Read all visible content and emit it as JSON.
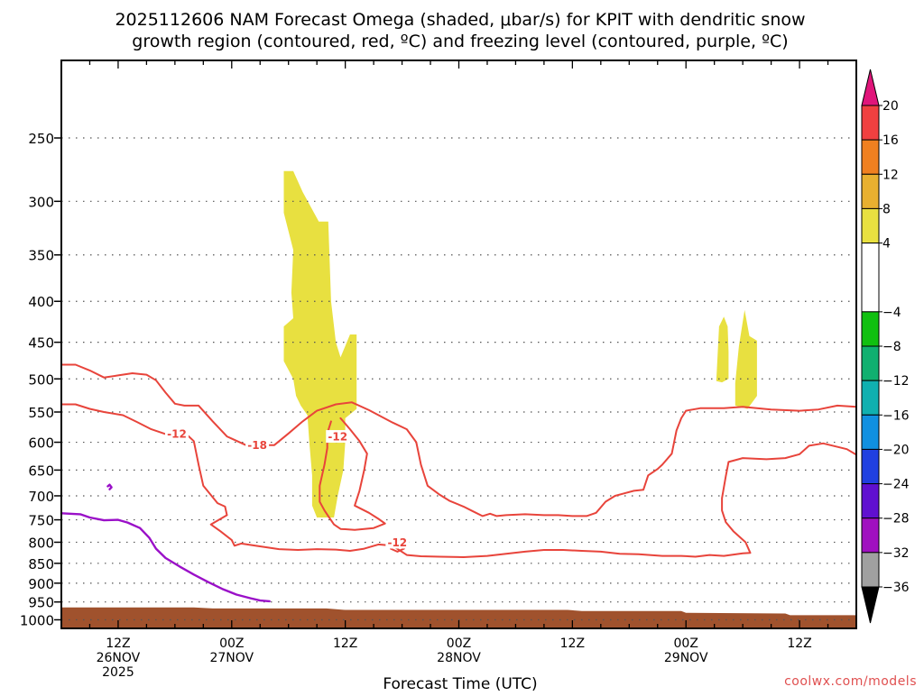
{
  "chart_data": {
    "type": "contour",
    "title_lines": [
      "2025112606 NAM Forecast Omega (shaded, μbar/s) for KPIT with dendritic snow",
      "growth region (contoured, red, ºC) and freezing level (contoured, purple, ºC)"
    ],
    "xlabel": "Forecast Time (UTC)",
    "credit": "coolwx.com/models",
    "x_unit": "hours since 26NOV 00Z",
    "xlim": [
      6,
      90
    ],
    "y_unit": "hPa",
    "ylim": [
      1025,
      200
    ],
    "y_ticks": [
      250,
      300,
      350,
      400,
      450,
      500,
      550,
      600,
      650,
      700,
      750,
      800,
      850,
      900,
      950,
      1000
    ],
    "x_ticks": [
      {
        "hour": 12,
        "lines": [
          "12Z",
          "26NOV",
          "2025"
        ]
      },
      {
        "hour": 24,
        "lines": [
          "00Z",
          "27NOV"
        ]
      },
      {
        "hour": 36,
        "lines": [
          "12Z"
        ]
      },
      {
        "hour": 48,
        "lines": [
          "00Z",
          "28NOV"
        ]
      },
      {
        "hour": 60,
        "lines": [
          "12Z"
        ]
      },
      {
        "hour": 72,
        "lines": [
          "00Z",
          "29NOV"
        ]
      },
      {
        "hour": 84,
        "lines": [
          "12Z"
        ]
      }
    ],
    "colorbar": {
      "label_values": [
        20,
        16,
        12,
        8,
        4,
        -4,
        -8,
        -12,
        -16,
        -20,
        -24,
        -28,
        -32,
        -36
      ],
      "bands": [
        {
          "from": 16,
          "to": 20,
          "color": "#f04040"
        },
        {
          "from": 12,
          "to": 16,
          "color": "#f08020"
        },
        {
          "from": 8,
          "to": 12,
          "color": "#e8b030"
        },
        {
          "from": 4,
          "to": 8,
          "color": "#e8e040"
        },
        {
          "from": -4,
          "to": 4,
          "color": "#ffffff"
        },
        {
          "from": -8,
          "to": -4,
          "color": "#10c010"
        },
        {
          "from": -12,
          "to": -8,
          "color": "#10b070"
        },
        {
          "from": -16,
          "to": -12,
          "color": "#10b0b0"
        },
        {
          "from": -20,
          "to": -16,
          "color": "#1090e0"
        },
        {
          "from": -24,
          "to": -20,
          "color": "#2040e0"
        },
        {
          "from": -28,
          "to": -24,
          "color": "#6010d0"
        },
        {
          "from": -32,
          "to": -28,
          "color": "#a010c0"
        },
        {
          "from": -36,
          "to": -32,
          "color": "#a0a0a0"
        }
      ],
      "top_arrow_color": "#e0157a",
      "bottom_arrow_color": "#000000"
    },
    "omega_shaded_regions": [
      {
        "color": "#e8e040",
        "value_range": "4 to 8",
        "points": [
          [
            29.5,
            275
          ],
          [
            30.5,
            275
          ],
          [
            31.5,
            292
          ],
          [
            33.2,
            318
          ],
          [
            34.2,
            318
          ],
          [
            34.5,
            400
          ],
          [
            35,
            450
          ],
          [
            35.5,
            470
          ],
          [
            36.5,
            440
          ],
          [
            37.2,
            440
          ],
          [
            37.2,
            545
          ],
          [
            36,
            560
          ],
          [
            36,
            600
          ],
          [
            35.8,
            650
          ],
          [
            35.2,
            700
          ],
          [
            34.8,
            745
          ],
          [
            33,
            745
          ],
          [
            32.5,
            720
          ],
          [
            32.5,
            660
          ],
          [
            32.2,
            600
          ],
          [
            32,
            555
          ],
          [
            31.3,
            540
          ],
          [
            30.8,
            525
          ],
          [
            30.5,
            500
          ],
          [
            29.5,
            475
          ],
          [
            29.5,
            430
          ],
          [
            30.5,
            420
          ],
          [
            30.3,
            390
          ],
          [
            30.5,
            345
          ],
          [
            29.5,
            310
          ]
        ]
      },
      {
        "color": "#e8e040",
        "value_range": "4 to 8",
        "points": [
          [
            75.5,
            430
          ],
          [
            76,
            418
          ],
          [
            76.4,
            430
          ],
          [
            76.5,
            462
          ],
          [
            76.5,
            500
          ],
          [
            75.8,
            505
          ],
          [
            75.2,
            503
          ]
        ]
      },
      {
        "color": "#e8e040",
        "value_range": "4 to 8",
        "points": [
          [
            77.2,
            506
          ],
          [
            77.6,
            455
          ],
          [
            78.2,
            410
          ],
          [
            78.7,
            442
          ],
          [
            79.5,
            448
          ],
          [
            79.5,
            525
          ],
          [
            78.5,
            545
          ],
          [
            77.2,
            540
          ]
        ]
      }
    ],
    "dgz_contours": [
      {
        "value": -18,
        "label": "-18",
        "label_at": [
          26.7,
          605
        ],
        "points": [
          [
            6,
            480
          ],
          [
            7.5,
            480
          ],
          [
            9,
            488
          ],
          [
            10.5,
            498
          ],
          [
            12,
            495
          ],
          [
            13.5,
            492
          ],
          [
            15,
            494
          ],
          [
            16,
            502
          ],
          [
            17,
            520
          ],
          [
            18,
            537
          ],
          [
            19,
            540
          ],
          [
            20.5,
            540
          ],
          [
            22,
            565
          ],
          [
            23.5,
            590
          ],
          [
            25.5,
            605
          ],
          [
            28.5,
            605
          ],
          [
            30,
            585
          ],
          [
            31.5,
            565
          ],
          [
            33,
            548
          ],
          [
            35,
            538
          ],
          [
            36.7,
            535
          ],
          [
            38.5,
            547
          ],
          [
            41,
            567
          ],
          [
            42.5,
            578
          ],
          [
            43.5,
            600
          ],
          [
            44,
            640
          ],
          [
            44.7,
            680
          ],
          [
            46,
            698
          ],
          [
            47,
            710
          ],
          [
            48.5,
            722
          ],
          [
            49.5,
            732
          ],
          [
            50.5,
            742
          ],
          [
            51.3,
            737
          ],
          [
            52,
            742
          ],
          [
            53,
            740
          ],
          [
            55,
            738
          ],
          [
            57,
            740
          ],
          [
            58.5,
            740
          ],
          [
            60,
            742
          ],
          [
            61.5,
            742
          ],
          [
            62.5,
            735
          ],
          [
            63.5,
            712
          ],
          [
            64.5,
            700
          ],
          [
            65.5,
            695
          ],
          [
            66.5,
            690
          ],
          [
            67.5,
            688
          ],
          [
            68,
            660
          ],
          [
            69,
            648
          ],
          [
            69.5,
            640
          ],
          [
            70.5,
            620
          ],
          [
            71,
            580
          ],
          [
            71.5,
            560
          ],
          [
            72,
            548
          ],
          [
            73.5,
            544
          ],
          [
            76,
            544
          ],
          [
            78,
            542
          ],
          [
            81,
            546
          ],
          [
            84,
            548
          ],
          [
            86,
            546
          ],
          [
            88,
            540
          ],
          [
            90,
            542
          ]
        ]
      },
      {
        "value": -12,
        "label": "-12",
        "label_at": [
          18.2,
          585
        ],
        "points": [
          [
            6,
            538
          ],
          [
            7.5,
            538
          ],
          [
            9,
            545
          ],
          [
            10.5,
            550
          ],
          [
            12.5,
            555
          ],
          [
            14,
            566
          ],
          [
            15.5,
            578
          ],
          [
            17,
            586
          ],
          [
            19,
            583
          ],
          [
            20,
            598
          ],
          [
            20.5,
            640
          ],
          [
            21,
            680
          ],
          [
            22.5,
            715
          ],
          [
            23.3,
            722
          ],
          [
            23.5,
            740
          ],
          [
            21.8,
            760
          ],
          [
            22.8,
            775
          ],
          [
            24,
            795
          ],
          [
            24.3,
            808
          ],
          [
            25,
            803
          ],
          [
            26.5,
            808
          ],
          [
            29,
            816
          ],
          [
            31,
            818
          ],
          [
            33,
            816
          ],
          [
            35,
            817
          ],
          [
            36.5,
            820
          ],
          [
            38,
            815
          ],
          [
            39.5,
            805
          ],
          [
            41,
            808
          ],
          [
            42.5,
            830
          ],
          [
            44,
            833
          ],
          [
            46,
            834
          ],
          [
            48.5,
            835
          ],
          [
            51,
            832
          ],
          [
            53,
            827
          ],
          [
            55,
            822
          ],
          [
            57,
            818
          ],
          [
            59,
            818
          ],
          [
            61,
            820
          ],
          [
            63,
            822
          ],
          [
            65,
            827
          ],
          [
            67,
            828
          ],
          [
            69.5,
            832
          ],
          [
            71.5,
            832
          ],
          [
            73,
            834
          ],
          [
            74.5,
            830
          ],
          [
            76,
            832
          ],
          [
            78,
            826
          ],
          [
            78.8,
            825
          ],
          [
            78.3,
            800
          ],
          [
            77,
            775
          ],
          [
            76.2,
            755
          ],
          [
            75.8,
            730
          ],
          [
            75.8,
            705
          ],
          [
            76.2,
            662
          ],
          [
            76.5,
            635
          ],
          [
            78,
            628
          ],
          [
            80.5,
            630
          ],
          [
            82.5,
            628
          ],
          [
            84,
            621
          ],
          [
            85,
            606
          ],
          [
            86.5,
            602
          ],
          [
            89,
            612
          ],
          [
            90,
            622
          ]
        ]
      },
      {
        "value": -12,
        "label": "-12",
        "label_at": [
          35.2,
          590
        ],
        "points": [
          [
            35.5,
            560
          ],
          [
            36.5,
            578
          ],
          [
            37.5,
            598
          ],
          [
            38.3,
            620
          ],
          [
            38,
            650
          ],
          [
            37.5,
            690
          ],
          [
            37,
            720
          ],
          [
            38.5,
            735
          ],
          [
            39.5,
            748
          ],
          [
            40.2,
            758
          ],
          [
            39,
            768
          ],
          [
            37,
            772
          ],
          [
            35.5,
            770
          ],
          [
            34.8,
            760
          ],
          [
            34.3,
            745
          ],
          [
            33.8,
            730
          ],
          [
            33.3,
            712
          ],
          [
            33.3,
            680
          ],
          [
            33.8,
            640
          ],
          [
            34.1,
            610
          ],
          [
            34.1,
            585
          ],
          [
            34.5,
            565
          ]
        ]
      },
      {
        "value": -12,
        "label": "-12",
        "label_at": [
          41.5,
          800
        ],
        "points": [
          [
            40.5,
            800
          ],
          [
            41.2,
            790
          ],
          [
            42.2,
            788
          ],
          [
            42.6,
            800
          ],
          [
            42.2,
            815
          ],
          [
            41.5,
            822
          ],
          [
            40.8,
            815
          ]
        ]
      }
    ],
    "freezing_level_contours": [
      {
        "value": 0,
        "points": [
          [
            6,
            736
          ],
          [
            8,
            738
          ],
          [
            9,
            745
          ],
          [
            10.5,
            751
          ],
          [
            12,
            750
          ],
          [
            13,
            756
          ],
          [
            14.3,
            768
          ],
          [
            15.3,
            790
          ],
          [
            16,
            815
          ],
          [
            17,
            837
          ],
          [
            18.5,
            858
          ],
          [
            20,
            878
          ],
          [
            21.5,
            897
          ],
          [
            23,
            915
          ],
          [
            24.5,
            930
          ],
          [
            26,
            940
          ],
          [
            27,
            946
          ],
          [
            28,
            948
          ]
        ]
      },
      {
        "value": 0,
        "points": [
          [
            10.9,
            681
          ],
          [
            11.1,
            678
          ],
          [
            11.3,
            683
          ],
          [
            11.1,
            687
          ]
        ]
      }
    ],
    "terrain": {
      "color": "#a0522d",
      "points": [
        [
          6,
          965
        ],
        [
          20,
          965
        ],
        [
          22,
          968
        ],
        [
          34,
          968
        ],
        [
          36,
          972
        ],
        [
          59.5,
          972
        ],
        [
          61,
          975
        ],
        [
          71.5,
          975
        ],
        [
          72,
          980
        ],
        [
          82.5,
          982
        ],
        [
          83,
          987
        ],
        [
          90,
          987
        ]
      ]
    }
  }
}
